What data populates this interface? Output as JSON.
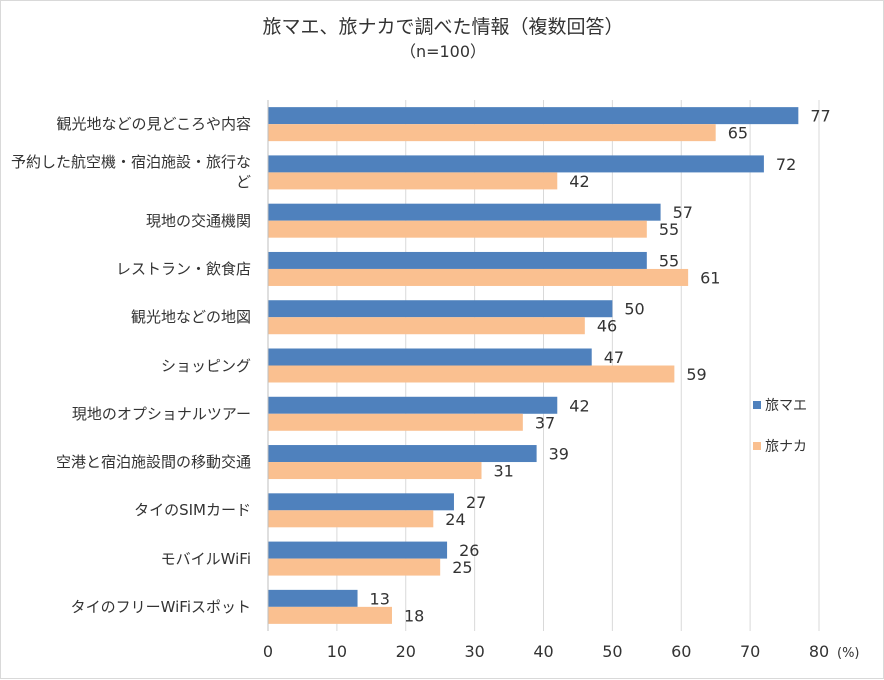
{
  "title": "旅マエ、旅ナカで調べた情報（複数回答）",
  "subtitle": "（n=100）",
  "colors": {
    "series1": "#4f81bd",
    "series2": "#fac090",
    "grid": "#d9d9d9",
    "text": "#333333"
  },
  "chart_data": {
    "type": "bar",
    "orientation": "horizontal",
    "title": "旅マエ、旅ナカで調べた情報（複数回答）",
    "subtitle": "（n=100）",
    "categories": [
      "観光地などの見どころや内容",
      "予約した航空機・宿泊施設・旅行など",
      "現地の交通機関",
      "レストラン・飲食店",
      "観光地などの地図",
      "ショッピング",
      "現地のオプショナルツアー",
      "空港と宿泊施設間の移動交通",
      "タイのSIMカード",
      "モバイルWiFi",
      "タイのフリーWiFiスポット"
    ],
    "series": [
      {
        "name": "旅マエ",
        "values": [
          77,
          72,
          57,
          55,
          50,
          47,
          42,
          39,
          27,
          26,
          13
        ]
      },
      {
        "name": "旅ナカ",
        "values": [
          65,
          42,
          55,
          61,
          46,
          59,
          37,
          31,
          24,
          25,
          18
        ]
      }
    ],
    "xlim": [
      0,
      80
    ],
    "xticks": [
      0,
      10,
      20,
      30,
      40,
      50,
      60,
      70,
      80
    ],
    "xunit": "(%)",
    "grid": true,
    "legend": "right"
  }
}
